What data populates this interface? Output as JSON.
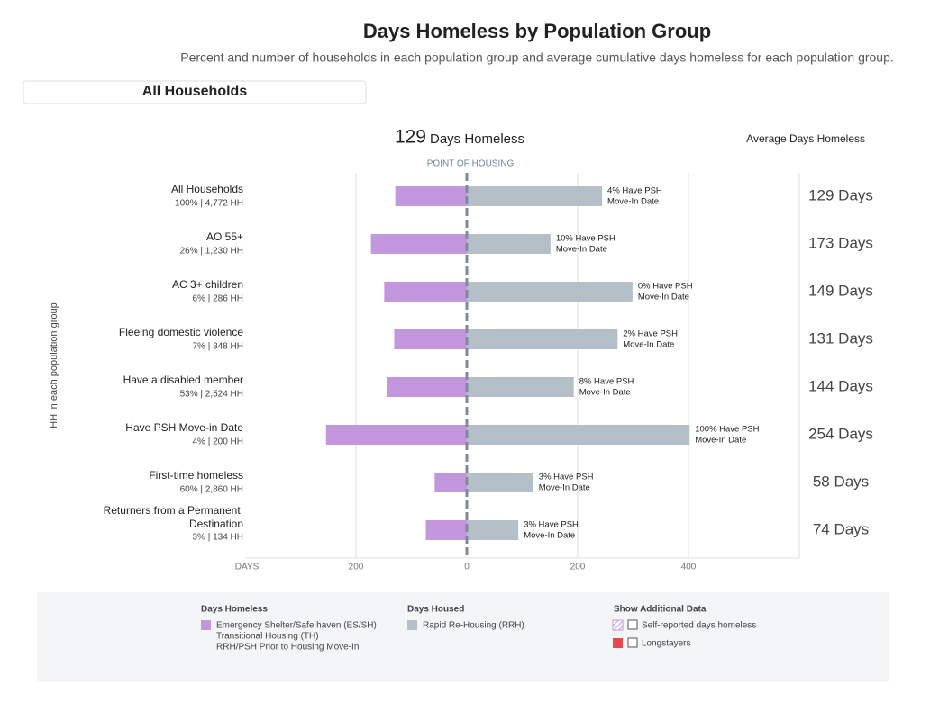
{
  "chart_data": {
    "type": "diverging_bar",
    "title": "Days Homeless by Population Group",
    "subtitle": "Percent and number of households in each population group and average cumulative days homeless for each population group.",
    "filter": "All Households",
    "header": {
      "value": 129,
      "label": "Days Homeless"
    },
    "right_column_title": "Average Days Homeless",
    "zero_line_label": "POINT OF HOUSING",
    "y_axis_label": "HH in each population group",
    "categories": [
      "All Households",
      "AO 55+",
      "AC 3+ children",
      "Fleeing domestic violence",
      "Have a disabled member",
      "Have PSH Move-in Date",
      "First-time homeless",
      "Returners from a Permanent Destination"
    ],
    "category_details": [
      "100% | 4,772 HH",
      "26% | 1,230 HH",
      "6% | 286 HH",
      "7% | 348 HH",
      "53% | 2,524 HH",
      "4% | 200 HH",
      "60% | 2,860 HH",
      "3% | 134 HH"
    ],
    "series": [
      {
        "name": "Days Homeless",
        "color": "#c397dd",
        "direction": "left",
        "legend_lines": [
          "Emergency Shelter/Safe haven (ES/SH)",
          "Transitional Housing (TH)",
          "RRH/PSH Prior to Housing Move-In"
        ],
        "values": [
          129,
          173,
          149,
          131,
          144,
          254,
          58,
          74
        ],
        "value_labels": [
          "129 Days",
          "173 Days",
          "149 Days",
          "131 Days",
          "144 Days",
          "254 Days",
          "58 Days",
          "74 Days"
        ]
      },
      {
        "name": "Days Housed",
        "color": "#b4bfc7",
        "direction": "right",
        "legend_lines": [
          "Rapid Re-Housing (RRH)"
        ],
        "values": [
          244,
          151,
          299,
          272,
          193,
          402,
          120,
          93
        ]
      }
    ],
    "annotations": [
      [
        "4% Have PSH",
        "Move-In Date"
      ],
      [
        "10% Have PSH",
        "Move-In Date"
      ],
      [
        "0% Have PSH",
        "Move-In Date"
      ],
      [
        "2% Have PSH",
        "Move-In Date"
      ],
      [
        "8% Have PSH",
        "Move-In Date"
      ],
      [
        "100% Have PSH",
        "Move-In Date"
      ],
      [
        "3% Have PSH",
        "Move-In Date"
      ],
      [
        "3% Have PSH",
        "Move-In Date"
      ]
    ],
    "xlim": [
      -400,
      600
    ],
    "xticks": [
      {
        "value": -400,
        "label": "DAYS"
      },
      {
        "value": -200,
        "label": "200"
      },
      0,
      200,
      400
    ],
    "grid": true,
    "additional_data": {
      "title": "Show Additional Data",
      "options": [
        {
          "label": "Self-reported days homeless",
          "color": "#c397dd",
          "pattern": "hatch"
        },
        {
          "label": "Longstayers",
          "color": "#e8474c"
        }
      ]
    }
  }
}
